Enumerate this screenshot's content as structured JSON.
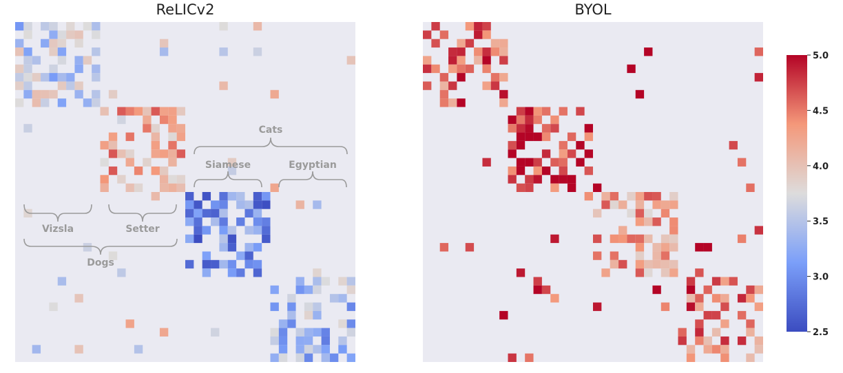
{
  "figure": {
    "panels": [
      {
        "title": "ReLICv2"
      },
      {
        "title": "BYOL"
      }
    ],
    "annotations": {
      "vizsla": "Vizsla",
      "setter": "Setter",
      "dogs": "Dogs",
      "siamese": "Siamese",
      "egyptian": "Egyptian",
      "cats": "Cats"
    }
  },
  "chart_data": [
    {
      "type": "heatmap",
      "title": "ReLICv2",
      "n": 40,
      "clusters": [
        {
          "start": 0,
          "end": 10,
          "label": "Vizsla",
          "mean": 3.55,
          "density": 0.55
        },
        {
          "start": 10,
          "end": 20,
          "label": "Setter",
          "mean": 4.15,
          "density": 0.55
        },
        {
          "start": 20,
          "end": 30,
          "label": "Siamese",
          "mean": 3.0,
          "density": 0.5
        },
        {
          "start": 30,
          "end": 40,
          "label": "Egyptian",
          "mean": 3.35,
          "density": 0.5
        }
      ],
      "groups": [
        {
          "label": "Dogs",
          "members": [
            "Vizsla",
            "Setter"
          ]
        },
        {
          "label": "Cats",
          "members": [
            "Siamese",
            "Egyptian"
          ]
        }
      ],
      "background_density": 0.02,
      "background_mean": 3.8,
      "color_range": [
        2.5,
        5.0
      ],
      "colormap": "coolwarm",
      "background_color": "#eaeaf2",
      "grid": false
    },
    {
      "type": "heatmap",
      "title": "BYOL",
      "n": 40,
      "clusters": [
        {
          "start": 0,
          "end": 10,
          "mean": 4.6,
          "density": 0.5
        },
        {
          "start": 10,
          "end": 20,
          "mean": 4.8,
          "density": 0.5
        },
        {
          "start": 20,
          "end": 30,
          "mean": 4.2,
          "density": 0.45
        },
        {
          "start": 30,
          "end": 40,
          "mean": 4.5,
          "density": 0.5
        }
      ],
      "background_density": 0.025,
      "background_mean": 4.8,
      "color_range": [
        2.5,
        5.0
      ],
      "colormap": "coolwarm",
      "background_color": "#eaeaf2",
      "grid": false
    }
  ],
  "colorbar": {
    "min": 2.5,
    "max": 5.0,
    "ticks": [
      "2.5",
      "3.0",
      "3.5",
      "4.0",
      "4.5",
      "5.0"
    ],
    "tick_values": [
      2.5,
      3.0,
      3.5,
      4.0,
      4.5,
      5.0
    ],
    "colormap": "coolwarm"
  },
  "colors": {
    "background": "#eaeaf2",
    "annotation": "#9a9a9a",
    "cold": "#3b4cc0",
    "neutral": "#dddcdc",
    "warm": "#b40426"
  }
}
